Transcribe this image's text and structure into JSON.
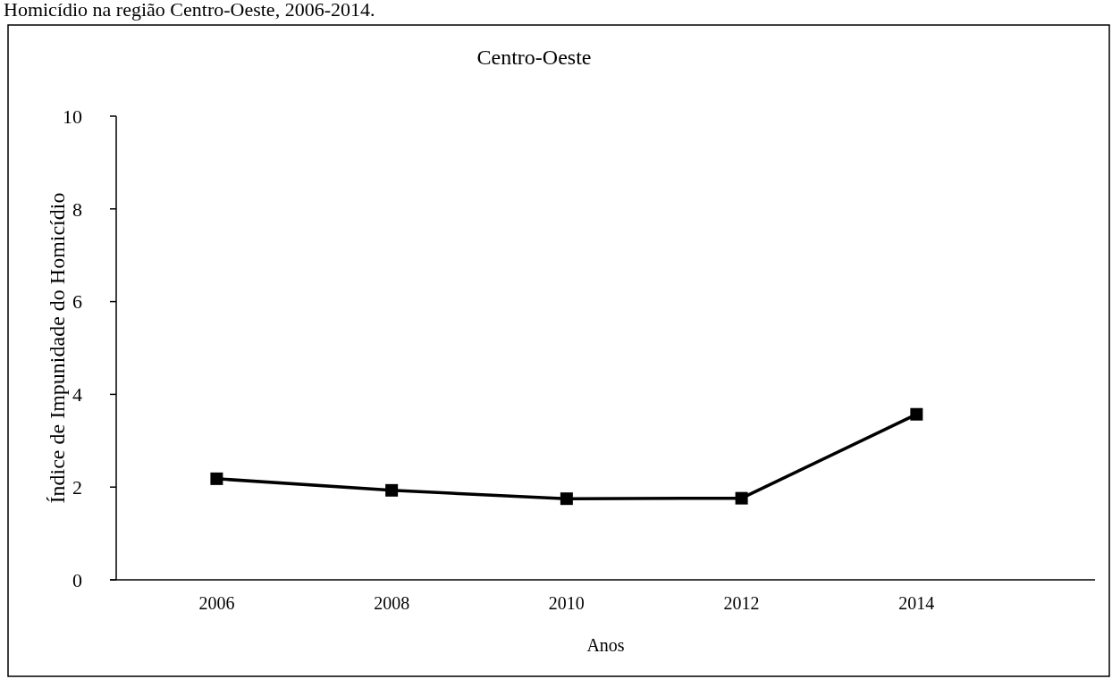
{
  "chart_data": {
    "type": "line",
    "title": "Centro-Oeste",
    "xlabel": "Anos",
    "ylabel": "Índice de Impunidade do Homicídio",
    "annotations": [
      "Homicídio na região Centro-Oeste, 2006-2014."
    ],
    "x": [
      2006,
      2008,
      2010,
      2012,
      2014
    ],
    "series": [
      {
        "color": "#000000",
        "values": [
          2.18,
          1.93,
          1.75,
          1.76,
          3.57
        ]
      }
    ],
    "xlim": [
      2004.78,
      2016.04
    ],
    "xticks": [
      2006,
      2008,
      2010,
      2012,
      2014
    ],
    "ylim": [
      0,
      10
    ],
    "yticks": [
      0,
      2,
      4,
      6,
      8,
      10
    ],
    "grid": false,
    "marker": "square",
    "line_style": "solid"
  }
}
